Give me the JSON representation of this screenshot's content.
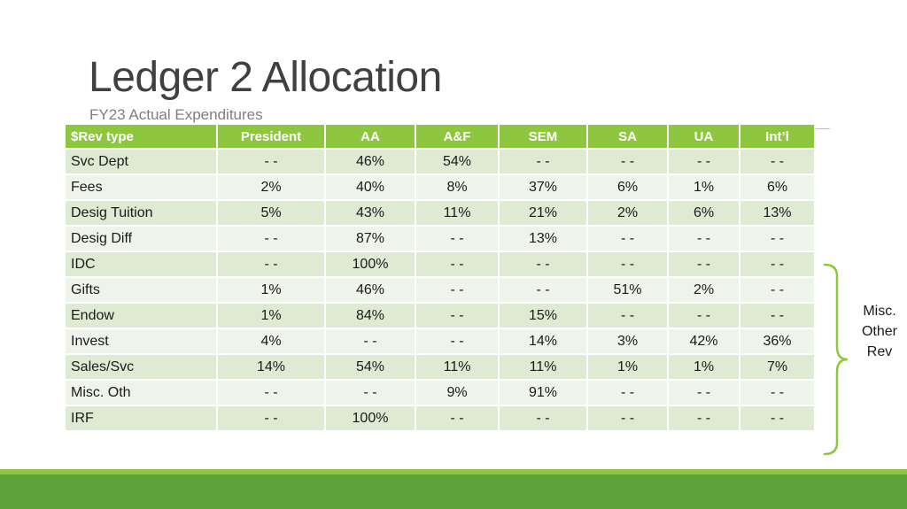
{
  "slide": {
    "title": "Ledger 2 Allocation",
    "subtitle": "FY23 Actual Expenditures"
  },
  "table": {
    "headers": [
      "$Rev type",
      "President",
      "AA",
      "A&F",
      "SEM",
      "SA",
      "UA",
      "Int’l"
    ],
    "rows": [
      [
        "Svc Dept",
        "- -",
        "46%",
        "54%",
        "- -",
        "- -",
        "- -",
        "- -"
      ],
      [
        "Fees",
        "2%",
        "40%",
        "8%",
        "37%",
        "6%",
        "1%",
        "6%"
      ],
      [
        "Desig Tuition",
        "5%",
        "43%",
        "11%",
        "21%",
        "2%",
        "6%",
        "13%"
      ],
      [
        "Desig Diff",
        "- -",
        "87%",
        "- -",
        "13%",
        "- -",
        "- -",
        "- -"
      ],
      [
        "IDC",
        "- -",
        "100%",
        "- -",
        "- -",
        "- -",
        "- -",
        "- -"
      ],
      [
        "Gifts",
        "1%",
        "46%",
        "- -",
        "- -",
        "51%",
        "2%",
        "- -"
      ],
      [
        "Endow",
        "1%",
        "84%",
        "- -",
        "15%",
        "- -",
        "- -",
        "- -"
      ],
      [
        "Invest",
        "4%",
        "- -",
        "- -",
        "14%",
        "3%",
        "42%",
        "36%"
      ],
      [
        "Sales/Svc",
        "14%",
        "54%",
        "11%",
        "11%",
        "1%",
        "1%",
        "7%"
      ],
      [
        "Misc. Oth",
        "- -",
        "- -",
        "9%",
        "91%",
        "- -",
        "- -",
        "- -"
      ],
      [
        "IRF",
        "- -",
        "100%",
        "- -",
        "- -",
        "- -",
        "- -",
        "- -"
      ]
    ]
  },
  "annotation": {
    "lines": [
      "Misc.",
      "Other",
      "Rev"
    ]
  },
  "colors": {
    "header_green": "#8dc63f",
    "row_odd": "#dfead3",
    "row_even": "#eff4ea",
    "footer_dark": "#5ea23a",
    "brace": "#8dc63f"
  }
}
